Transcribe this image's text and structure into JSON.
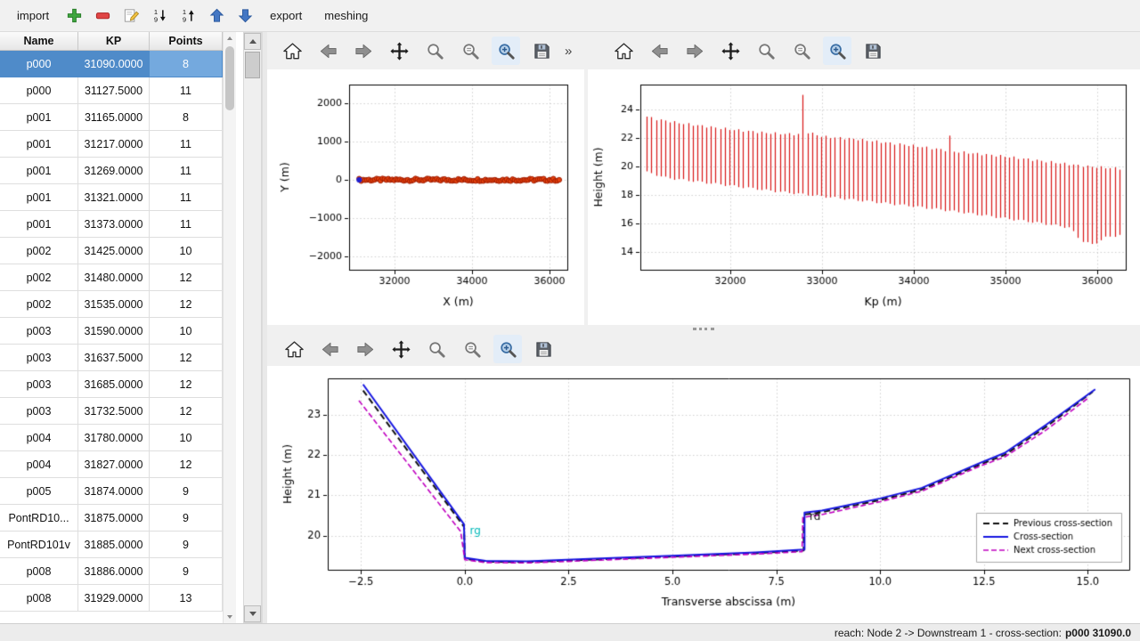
{
  "topbar": {
    "import_label": "import",
    "export_label": "export",
    "meshing_label": "meshing",
    "icons": [
      "add",
      "remove",
      "edit",
      "sort-ascending",
      "sort-descending",
      "move-up",
      "move-down"
    ]
  },
  "plot_toolbar": {
    "buttons": [
      "home",
      "back",
      "forward",
      "pan",
      "zoom",
      "zoom-options",
      "zoom-rect",
      "save"
    ],
    "overflow_chevron": "»"
  },
  "table": {
    "columns": [
      "Name",
      "KP",
      "Points"
    ],
    "selected_index": 0,
    "rows": [
      [
        "p000",
        "31090.0000",
        "8"
      ],
      [
        "p000",
        "31127.5000",
        "11"
      ],
      [
        "p001",
        "31165.0000",
        "8"
      ],
      [
        "p001",
        "31217.0000",
        "11"
      ],
      [
        "p001",
        "31269.0000",
        "11"
      ],
      [
        "p001",
        "31321.0000",
        "11"
      ],
      [
        "p001",
        "31373.0000",
        "11"
      ],
      [
        "p002",
        "31425.0000",
        "10"
      ],
      [
        "p002",
        "31480.0000",
        "12"
      ],
      [
        "p002",
        "31535.0000",
        "12"
      ],
      [
        "p003",
        "31590.0000",
        "10"
      ],
      [
        "p003",
        "31637.5000",
        "12"
      ],
      [
        "p003",
        "31685.0000",
        "12"
      ],
      [
        "p003",
        "31732.5000",
        "12"
      ],
      [
        "p004",
        "31780.0000",
        "10"
      ],
      [
        "p004",
        "31827.0000",
        "12"
      ],
      [
        "p005",
        "31874.0000",
        "9"
      ],
      [
        "PontRD10...",
        "31875.0000",
        "9"
      ],
      [
        "PontRD101v",
        "31885.0000",
        "9"
      ],
      [
        "p008",
        "31886.0000",
        "9"
      ],
      [
        "p008",
        "31929.0000",
        "13"
      ]
    ]
  },
  "status_bar": {
    "prefix": "reach: Node 2 -> Downstream 1 - cross-section: ",
    "highlight": "p000 31090.0"
  },
  "colors": {
    "selection": "#4f8bc9",
    "selection_light": "#74a9de",
    "series_red": "#d81414",
    "series_blue": "#1414e0",
    "series_magenta": "#c000c0",
    "label_cyan": "#00b8b8"
  },
  "chart_data": [
    {
      "id": "plan-view",
      "type": "scatter",
      "title": "",
      "xlabel": "X (m)",
      "ylabel": "Y (m)",
      "xlim": [
        30830,
        36460
      ],
      "ylim": [
        -2350,
        2490
      ],
      "xticks": [
        32000,
        34000,
        36000
      ],
      "yticks": [
        -2000,
        -1000,
        0,
        1000,
        2000
      ],
      "ytick_labels": [
        "−2000",
        "−1000",
        "0",
        "1000",
        "2000"
      ],
      "grid": true,
      "series": [
        {
          "name": "cross-section positions",
          "kind": "run",
          "x_min": 31090,
          "x_max": 36250,
          "count": 104,
          "y": 0,
          "jitter": 70,
          "color": "#e8430d",
          "edge": "#9e1a00",
          "first_color": "#1f1fd0"
        }
      ]
    },
    {
      "id": "longitudinal-profile",
      "type": "vlines",
      "title": "",
      "xlabel": "Kp (m)",
      "ylabel": "Height (m)",
      "xlim": [
        31020,
        36310
      ],
      "ylim": [
        12.75,
        25.75
      ],
      "xticks": [
        32000,
        33000,
        34000,
        35000,
        36000
      ],
      "yticks": [
        14,
        16,
        18,
        20,
        22,
        24
      ],
      "grid": true,
      "color": "#d81414",
      "x_min": 31090,
      "x_max": 36250,
      "spacing": 50,
      "top_keypoints": [
        [
          31090,
          23.5
        ],
        [
          31200,
          23.3
        ],
        [
          31500,
          23.0
        ],
        [
          32000,
          22.6
        ],
        [
          32400,
          22.35
        ],
        [
          32740,
          22.25
        ],
        [
          32790,
          25.0
        ],
        [
          32840,
          22.4
        ],
        [
          33000,
          22.1
        ],
        [
          33400,
          21.9
        ],
        [
          34000,
          21.45
        ],
        [
          34340,
          21.15
        ],
        [
          34390,
          22.1
        ],
        [
          34440,
          21.05
        ],
        [
          35000,
          20.7
        ],
        [
          35500,
          20.3
        ],
        [
          35900,
          20.0
        ],
        [
          36250,
          19.85
        ]
      ],
      "bottom_keypoints": [
        [
          31090,
          19.6
        ],
        [
          31300,
          19.2
        ],
        [
          32000,
          18.65
        ],
        [
          32500,
          18.25
        ],
        [
          33000,
          17.9
        ],
        [
          33500,
          17.55
        ],
        [
          34000,
          17.2
        ],
        [
          34500,
          16.8
        ],
        [
          35000,
          16.35
        ],
        [
          35400,
          16.0
        ],
        [
          35700,
          15.7
        ],
        [
          35820,
          14.8
        ],
        [
          35950,
          14.5
        ],
        [
          36080,
          15.0
        ],
        [
          36250,
          15.2
        ]
      ]
    },
    {
      "id": "cross-section",
      "type": "line",
      "title": "",
      "xlabel": "Transverse abscissa (m)",
      "ylabel": "Height (m)",
      "xlim": [
        -3.3,
        16.0
      ],
      "ylim": [
        19.15,
        23.9
      ],
      "xticks": [
        -2.5,
        0,
        2.5,
        5,
        7.5,
        10,
        12.5,
        15
      ],
      "xtick_labels": [
        "−2.5",
        "0.0",
        "2.5",
        "5.0",
        "7.5",
        "10.0",
        "12.5",
        "15.0"
      ],
      "yticks": [
        20,
        21,
        22,
        23
      ],
      "grid": true,
      "tick_font": 11.5,
      "legend_from_series": true,
      "legend_position": "lower right",
      "series": [
        {
          "name": "Previous cross-section",
          "color": "#101010",
          "dash": [
            7,
            4
          ],
          "width": 2,
          "points": [
            [
              -2.45,
              23.6
            ],
            [
              -0.02,
              20.22
            ],
            [
              0.0,
              19.42
            ],
            [
              0.5,
              19.35
            ],
            [
              1.5,
              19.34
            ],
            [
              3.0,
              19.4
            ],
            [
              5.0,
              19.48
            ],
            [
              7.0,
              19.56
            ],
            [
              8.16,
              19.63
            ],
            [
              8.16,
              20.52
            ],
            [
              8.6,
              20.58
            ],
            [
              10.0,
              20.88
            ],
            [
              11.0,
              21.14
            ],
            [
              12.4,
              21.76
            ],
            [
              13.0,
              22.0
            ],
            [
              14.0,
              22.7
            ],
            [
              15.12,
              23.57
            ]
          ]
        },
        {
          "name": "Cross-section",
          "color": "#1414e0",
          "dash": [],
          "width": 2,
          "points": [
            [
              -2.45,
              23.75
            ],
            [
              -0.02,
              20.28
            ],
            [
              0.0,
              19.45
            ],
            [
              0.5,
              19.37
            ],
            [
              1.5,
              19.36
            ],
            [
              3.0,
              19.42
            ],
            [
              5.0,
              19.5
            ],
            [
              7.0,
              19.58
            ],
            [
              8.18,
              19.65
            ],
            [
              8.18,
              20.57
            ],
            [
              8.6,
              20.62
            ],
            [
              10.0,
              20.92
            ],
            [
              11.0,
              21.18
            ],
            [
              12.4,
              21.8
            ],
            [
              13.0,
              22.05
            ],
            [
              14.0,
              22.75
            ],
            [
              15.18,
              23.63
            ]
          ]
        },
        {
          "name": "Next cross-section",
          "color": "#c000c0",
          "dash": [
            6,
            3
          ],
          "width": 1.6,
          "points": [
            [
              -2.55,
              23.35
            ],
            [
              -0.1,
              20.1
            ],
            [
              0.0,
              19.4
            ],
            [
              0.5,
              19.33
            ],
            [
              1.5,
              19.32
            ],
            [
              3.0,
              19.38
            ],
            [
              5.0,
              19.46
            ],
            [
              7.0,
              19.54
            ],
            [
              8.12,
              19.6
            ],
            [
              8.14,
              20.45
            ],
            [
              8.6,
              20.52
            ],
            [
              10.0,
              20.84
            ],
            [
              11.0,
              21.1
            ],
            [
              12.4,
              21.72
            ],
            [
              13.0,
              21.95
            ],
            [
              14.0,
              22.62
            ],
            [
              15.02,
              23.42
            ]
          ]
        }
      ],
      "annotations": [
        {
          "text": "rg",
          "x": 0.12,
          "y": 20.1,
          "color": "#00b8b8"
        },
        {
          "text": "rd",
          "x": 8.3,
          "y": 20.45,
          "color": "#101010"
        }
      ]
    }
  ]
}
